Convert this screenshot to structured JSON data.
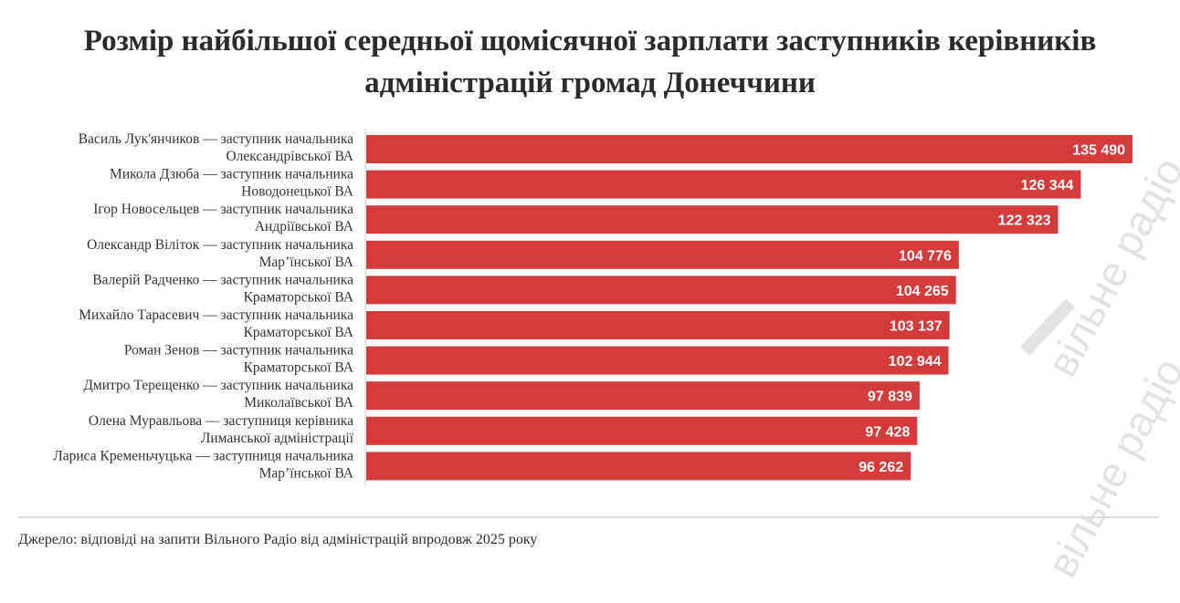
{
  "chart_data": {
    "type": "bar",
    "orientation": "horizontal",
    "title": "Розмір найбільшої середньої щомісячної зарплати заступників керівників адміністрацій громад Донеччини",
    "title_lines": [
      "Розмір найбільшої середньої щомісячної зарплати заступників керівників",
      "адміністрацій громад Донеччини"
    ],
    "categories": [
      [
        "Василь Лук'янчиков — заступник начальника",
        "Олександрівської ВА"
      ],
      [
        "Микола Дзюба — заступник начальника",
        "Новодонецької ВА"
      ],
      [
        "Ігор Новосельцев — заступник начальника",
        "Андріївської ВА"
      ],
      [
        "Олександр Віліток — заступник начальника",
        "Мар’їнської ВА"
      ],
      [
        "Валерій Радченко — заступник начальника",
        "Краматорської ВА"
      ],
      [
        "Михайло Тарасевич — заступник начальника",
        "Краматорської ВА"
      ],
      [
        "Роман Зенов — заступник начальника",
        "Краматорської ВА"
      ],
      [
        "Дмитро Терещенко — заступник начальника",
        "Миколаївської ВА"
      ],
      [
        "Олена Муравльова — заступниця керівника",
        "Лиманської адміністрації"
      ],
      [
        "Лариса Кременьчуцька — заступниця начальника",
        "Мар’їнської ВА"
      ]
    ],
    "values": [
      135490,
      126344,
      122323,
      104776,
      104265,
      103137,
      102944,
      97839,
      97428,
      96262
    ],
    "value_labels": [
      "135 490",
      "126 344",
      "122 323",
      "104 776",
      "104 265",
      "103 137",
      "102 944",
      "97 839",
      "97 428",
      "96 262"
    ],
    "xlim": [
      0,
      140000
    ],
    "xlabel": "",
    "ylabel": "",
    "grid": false,
    "bar_color": "#d63b3b",
    "watermark": "вільне радіо"
  },
  "footer": {
    "source": "Джерело: відповіді на запити Вільного Радіо від адміністрацій впродовж 2025 року"
  },
  "colors": {
    "bar": "#d63b3b",
    "title": "#2b2b2b",
    "label": "#333333",
    "watermark": "#e3e3e3",
    "divider": "#dcdcdc"
  }
}
